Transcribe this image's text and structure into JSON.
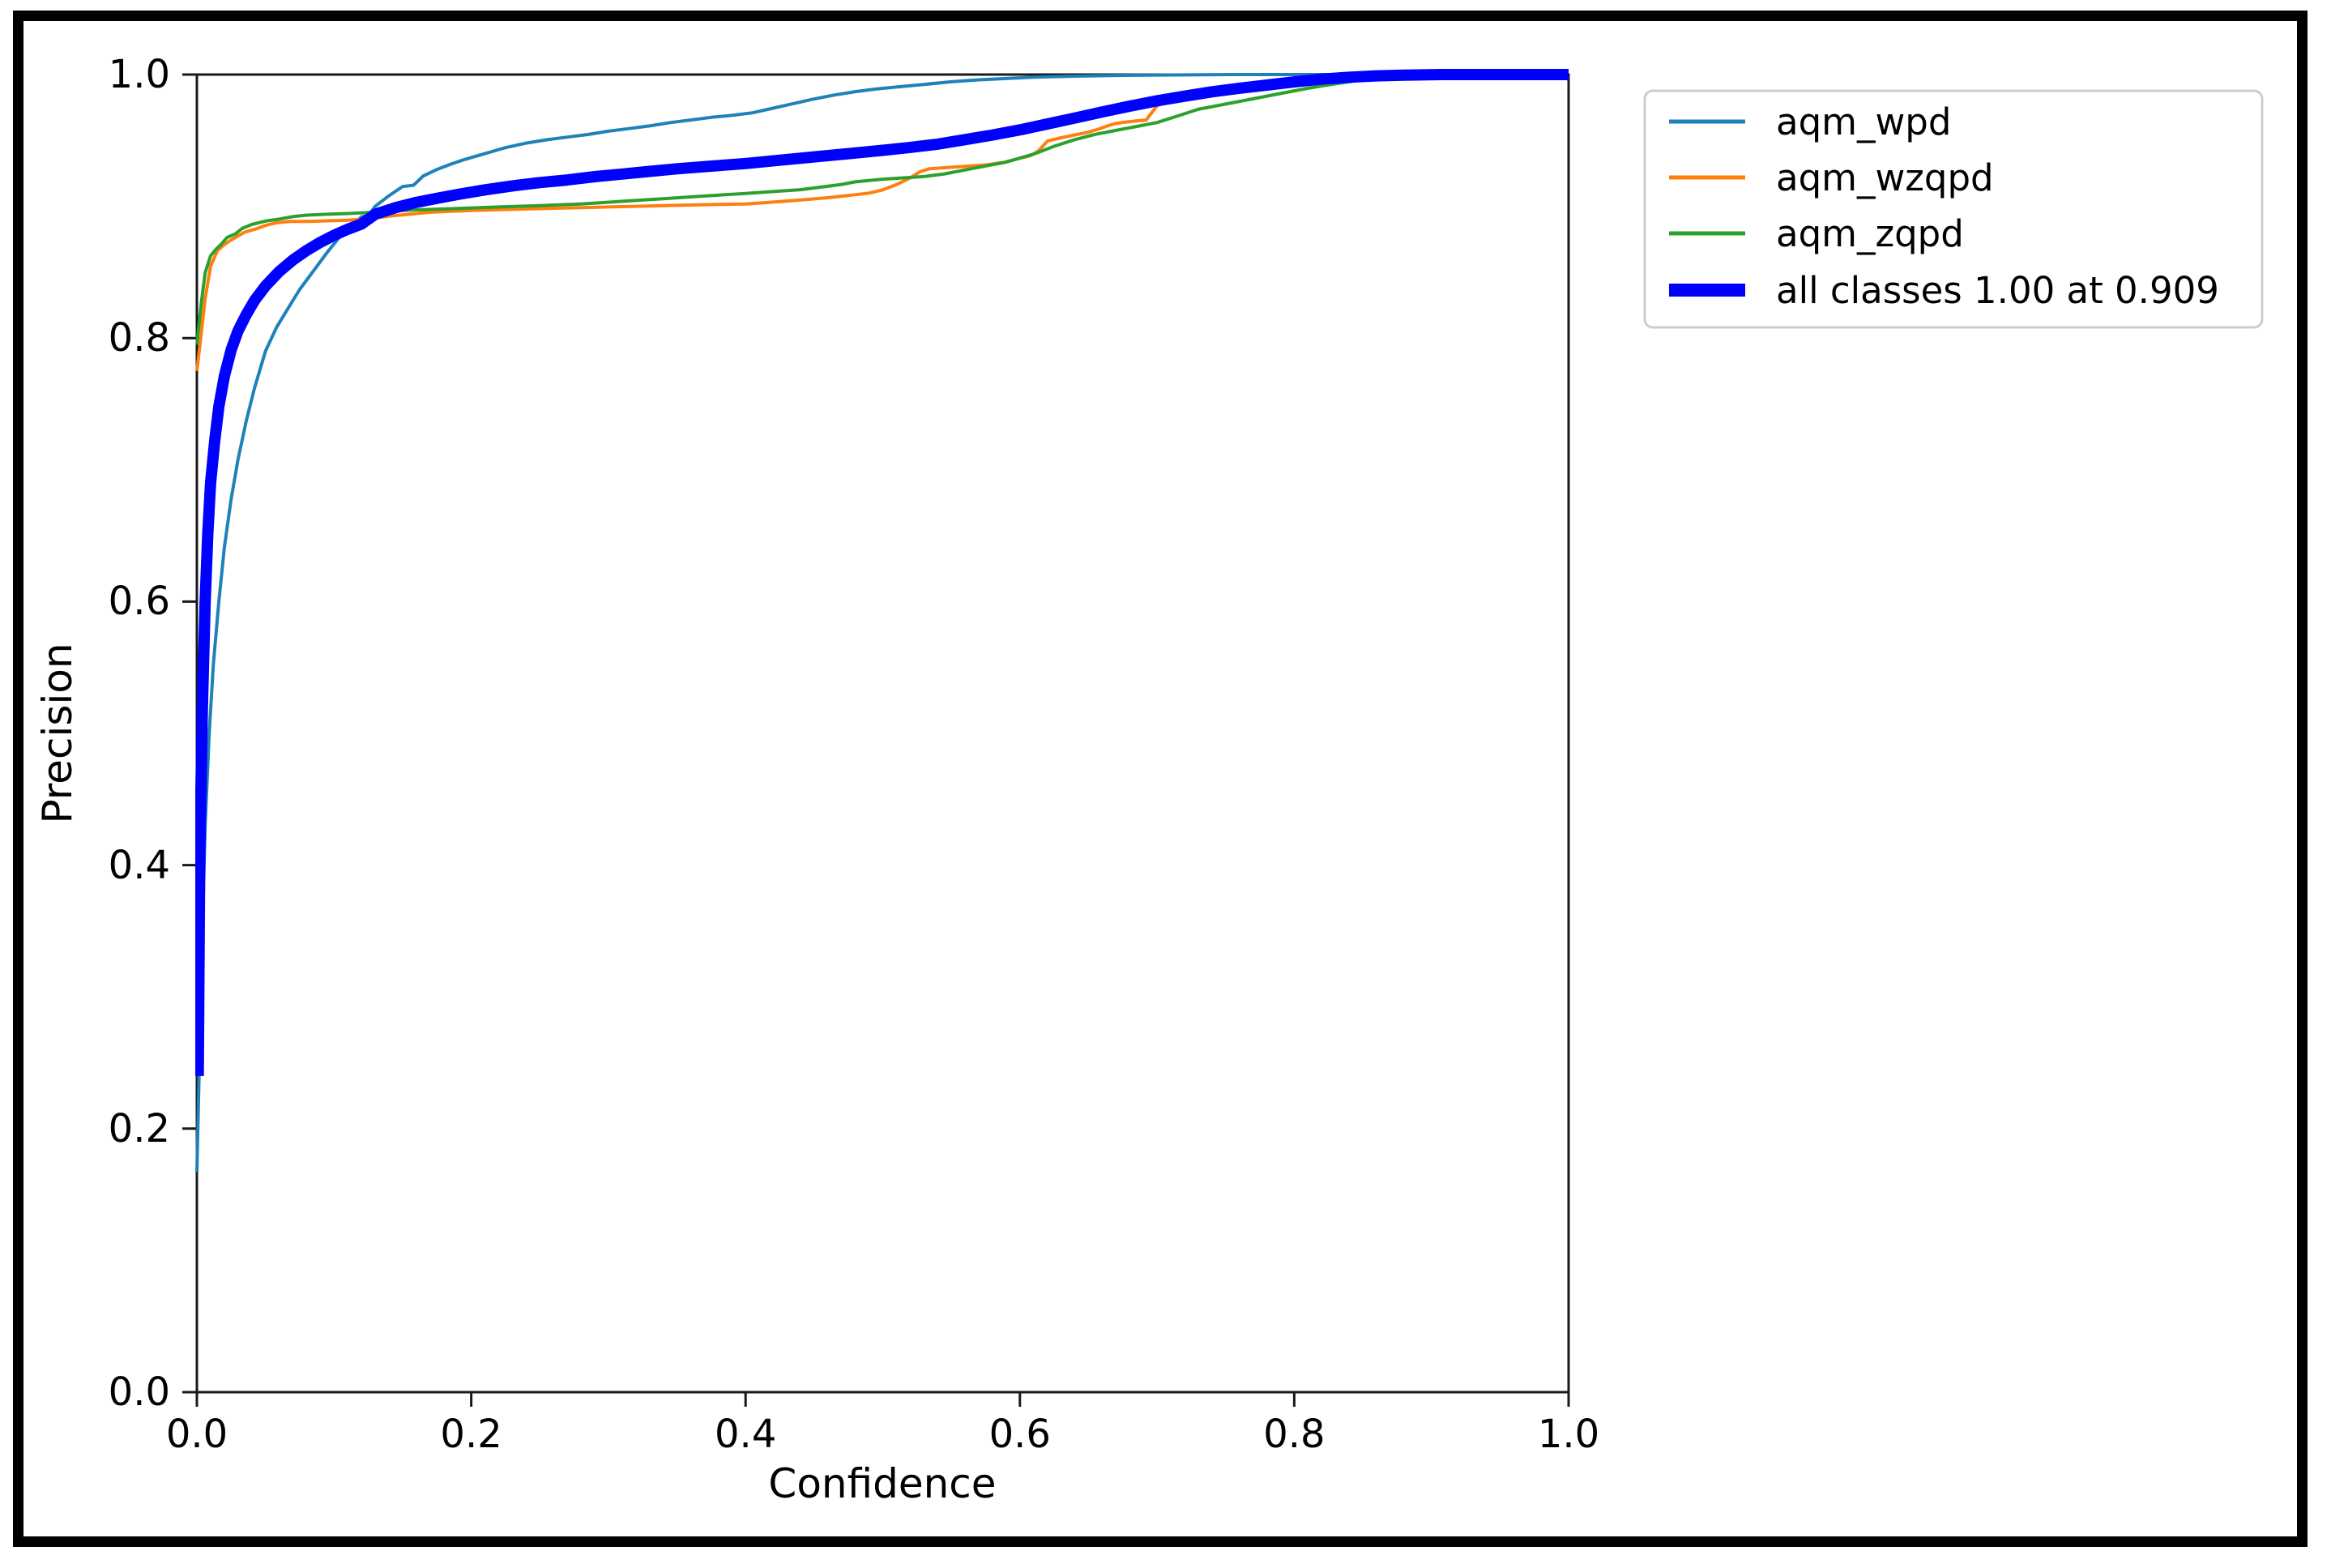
{
  "figure": {
    "background": "#ffffff",
    "outer_border_color": "#000000",
    "spine_color": "#1a1a1a",
    "legend_border_color": "#cccccc"
  },
  "chart_data": {
    "type": "line",
    "title": "",
    "xlabel": "Confidence",
    "ylabel": "Precision",
    "xlim": [
      0.0,
      1.0
    ],
    "ylim": [
      0.0,
      1.0
    ],
    "x_ticks": [
      "0.0",
      "0.2",
      "0.4",
      "0.6",
      "0.8",
      "1.0"
    ],
    "y_ticks": [
      "0.0",
      "0.2",
      "0.4",
      "0.6",
      "0.8",
      "1.0"
    ],
    "grid": false,
    "legend_position": "outside upper right",
    "series": [
      {
        "name": "aqm_wpd",
        "color": "#1e82b9",
        "line_width": 4,
        "points": [
          [
            0,
            0.167
          ],
          [
            0.002,
            0.26
          ],
          [
            0.004,
            0.35
          ],
          [
            0.006,
            0.43
          ],
          [
            0.009,
            0.5
          ],
          [
            0.012,
            0.552
          ],
          [
            0.016,
            0.6
          ],
          [
            0.02,
            0.641
          ],
          [
            0.025,
            0.678
          ],
          [
            0.03,
            0.708
          ],
          [
            0.036,
            0.737
          ],
          [
            0.042,
            0.762
          ],
          [
            0.05,
            0.79
          ],
          [
            0.058,
            0.808
          ],
          [
            0.065,
            0.82
          ],
          [
            0.075,
            0.837
          ],
          [
            0.085,
            0.851
          ],
          [
            0.095,
            0.865
          ],
          [
            0.105,
            0.878
          ],
          [
            0.112,
            0.885
          ],
          [
            0.12,
            0.892
          ],
          [
            0.125,
            0.893
          ],
          [
            0.13,
            0.9
          ],
          [
            0.14,
            0.908
          ],
          [
            0.15,
            0.915
          ],
          [
            0.158,
            0.916
          ],
          [
            0.165,
            0.923
          ],
          [
            0.175,
            0.928
          ],
          [
            0.185,
            0.932
          ],
          [
            0.195,
            0.9355
          ],
          [
            0.21,
            0.94
          ],
          [
            0.225,
            0.9445
          ],
          [
            0.24,
            0.948
          ],
          [
            0.255,
            0.9505
          ],
          [
            0.27,
            0.9525
          ],
          [
            0.285,
            0.9545
          ],
          [
            0.3,
            0.957
          ],
          [
            0.315,
            0.959
          ],
          [
            0.33,
            0.961
          ],
          [
            0.345,
            0.9635
          ],
          [
            0.36,
            0.9655
          ],
          [
            0.375,
            0.9675
          ],
          [
            0.39,
            0.969
          ],
          [
            0.405,
            0.971
          ],
          [
            0.42,
            0.9745
          ],
          [
            0.435,
            0.978
          ],
          [
            0.45,
            0.9815
          ],
          [
            0.465,
            0.9845
          ],
          [
            0.48,
            0.987
          ],
          [
            0.495,
            0.989
          ],
          [
            0.51,
            0.9905
          ],
          [
            0.53,
            0.9925
          ],
          [
            0.55,
            0.9945
          ],
          [
            0.57,
            0.996
          ],
          [
            0.59,
            0.997
          ],
          [
            0.61,
            0.998
          ],
          [
            0.64,
            0.9988
          ],
          [
            0.67,
            0.9993
          ],
          [
            0.71,
            0.9997
          ],
          [
            0.76,
            1.0
          ],
          [
            1.0,
            1.0
          ]
        ]
      },
      {
        "name": "aqm_wzqpd",
        "color": "#ff7f0e",
        "line_width": 4,
        "points": [
          [
            0,
            0.775
          ],
          [
            0.003,
            0.802
          ],
          [
            0.006,
            0.83
          ],
          [
            0.01,
            0.8545
          ],
          [
            0.015,
            0.8665
          ],
          [
            0.02,
            0.871
          ],
          [
            0.025,
            0.8745
          ],
          [
            0.03,
            0.8775
          ],
          [
            0.035,
            0.8805
          ],
          [
            0.042,
            0.8825
          ],
          [
            0.05,
            0.8855
          ],
          [
            0.058,
            0.8875
          ],
          [
            0.068,
            0.8885
          ],
          [
            0.08,
            0.8885
          ],
          [
            0.095,
            0.889
          ],
          [
            0.11,
            0.8895
          ],
          [
            0.125,
            0.8905
          ],
          [
            0.14,
            0.8925
          ],
          [
            0.155,
            0.894
          ],
          [
            0.17,
            0.8955
          ],
          [
            0.185,
            0.8962
          ],
          [
            0.2,
            0.8968
          ],
          [
            0.22,
            0.8974
          ],
          [
            0.24,
            0.898
          ],
          [
            0.26,
            0.8985
          ],
          [
            0.28,
            0.899
          ],
          [
            0.3,
            0.8995
          ],
          [
            0.32,
            0.9
          ],
          [
            0.34,
            0.9005
          ],
          [
            0.36,
            0.901
          ],
          [
            0.38,
            0.9014
          ],
          [
            0.4,
            0.9018
          ],
          [
            0.415,
            0.9028
          ],
          [
            0.43,
            0.904
          ],
          [
            0.445,
            0.9052
          ],
          [
            0.46,
            0.9065
          ],
          [
            0.475,
            0.9082
          ],
          [
            0.49,
            0.91
          ],
          [
            0.5,
            0.9125
          ],
          [
            0.51,
            0.9165
          ],
          [
            0.52,
            0.9215
          ],
          [
            0.527,
            0.9262
          ],
          [
            0.534,
            0.9285
          ],
          [
            0.548,
            0.9295
          ],
          [
            0.562,
            0.9305
          ],
          [
            0.576,
            0.9315
          ],
          [
            0.588,
            0.9333
          ],
          [
            0.6,
            0.9365
          ],
          [
            0.608,
            0.9385
          ],
          [
            0.614,
            0.9425
          ],
          [
            0.62,
            0.9495
          ],
          [
            0.63,
            0.952
          ],
          [
            0.64,
            0.9542
          ],
          [
            0.65,
            0.9563
          ],
          [
            0.657,
            0.9585
          ],
          [
            0.663,
            0.9607
          ],
          [
            0.669,
            0.9627
          ],
          [
            0.676,
            0.9638
          ],
          [
            0.684,
            0.9647
          ],
          [
            0.692,
            0.9655
          ],
          [
            0.7,
            0.9763
          ],
          [
            0.71,
            0.9803
          ],
          [
            0.72,
            0.9824
          ],
          [
            0.735,
            0.9853
          ],
          [
            0.75,
            0.9883
          ],
          [
            0.765,
            0.9904
          ],
          [
            0.78,
            0.9924
          ],
          [
            0.8,
            0.9944
          ],
          [
            0.82,
            0.9964
          ],
          [
            0.84,
            0.998
          ],
          [
            0.86,
            0.9994
          ],
          [
            0.88,
            1.0
          ],
          [
            1.0,
            1.0
          ]
        ]
      },
      {
        "name": "aqm_zqpd",
        "color": "#2ca02c",
        "line_width": 4,
        "points": [
          [
            0,
            0.795
          ],
          [
            0.003,
            0.825
          ],
          [
            0.006,
            0.8495
          ],
          [
            0.01,
            0.8625
          ],
          [
            0.014,
            0.8675
          ],
          [
            0.018,
            0.8715
          ],
          [
            0.022,
            0.8763
          ],
          [
            0.028,
            0.879
          ],
          [
            0.033,
            0.8832
          ],
          [
            0.04,
            0.8862
          ],
          [
            0.05,
            0.8888
          ],
          [
            0.06,
            0.8903
          ],
          [
            0.07,
            0.8922
          ],
          [
            0.08,
            0.8933
          ],
          [
            0.095,
            0.894
          ],
          [
            0.11,
            0.8945
          ],
          [
            0.125,
            0.8953
          ],
          [
            0.14,
            0.8963
          ],
          [
            0.16,
            0.8973
          ],
          [
            0.18,
            0.898
          ],
          [
            0.2,
            0.8988
          ],
          [
            0.22,
            0.8995
          ],
          [
            0.25,
            0.9005
          ],
          [
            0.28,
            0.9018
          ],
          [
            0.31,
            0.9038
          ],
          [
            0.34,
            0.9058
          ],
          [
            0.37,
            0.9078
          ],
          [
            0.4,
            0.9098
          ],
          [
            0.42,
            0.9112
          ],
          [
            0.44,
            0.9126
          ],
          [
            0.455,
            0.9146
          ],
          [
            0.47,
            0.9166
          ],
          [
            0.48,
            0.9186
          ],
          [
            0.49,
            0.9196
          ],
          [
            0.5,
            0.9206
          ],
          [
            0.515,
            0.9216
          ],
          [
            0.53,
            0.9226
          ],
          [
            0.545,
            0.9246
          ],
          [
            0.56,
            0.9276
          ],
          [
            0.575,
            0.9306
          ],
          [
            0.59,
            0.9336
          ],
          [
            0.6,
            0.9366
          ],
          [
            0.61,
            0.9396
          ],
          [
            0.625,
            0.9456
          ],
          [
            0.64,
            0.9506
          ],
          [
            0.655,
            0.9546
          ],
          [
            0.67,
            0.9576
          ],
          [
            0.685,
            0.9606
          ],
          [
            0.7,
            0.9636
          ],
          [
            0.715,
            0.9686
          ],
          [
            0.73,
            0.9736
          ],
          [
            0.75,
            0.9776
          ],
          [
            0.77,
            0.9816
          ],
          [
            0.79,
            0.9856
          ],
          [
            0.81,
            0.9896
          ],
          [
            0.83,
            0.993
          ],
          [
            0.85,
            0.996
          ],
          [
            0.87,
            0.998
          ],
          [
            0.89,
            0.9995
          ],
          [
            0.91,
            1.0
          ],
          [
            1.0,
            1.0
          ]
        ]
      },
      {
        "name": "all classes 1.00 at 0.909",
        "color": "#0000ff",
        "line_width": 14,
        "points": [
          [
            0.001,
            0.24
          ],
          [
            0.002,
            0.4
          ],
          [
            0.004,
            0.52
          ],
          [
            0.006,
            0.6
          ],
          [
            0.008,
            0.652
          ],
          [
            0.01,
            0.69
          ],
          [
            0.013,
            0.722
          ],
          [
            0.016,
            0.748
          ],
          [
            0.02,
            0.771
          ],
          [
            0.025,
            0.791
          ],
          [
            0.03,
            0.8055
          ],
          [
            0.036,
            0.8178
          ],
          [
            0.042,
            0.8285
          ],
          [
            0.05,
            0.8395
          ],
          [
            0.06,
            0.8505
          ],
          [
            0.07,
            0.8592
          ],
          [
            0.08,
            0.8665
          ],
          [
            0.09,
            0.8727
          ],
          [
            0.1,
            0.878
          ],
          [
            0.11,
            0.8826
          ],
          [
            0.12,
            0.8866
          ],
          [
            0.13,
            0.894
          ],
          [
            0.145,
            0.899
          ],
          [
            0.16,
            0.903
          ],
          [
            0.175,
            0.906
          ],
          [
            0.19,
            0.909
          ],
          [
            0.21,
            0.9125
          ],
          [
            0.23,
            0.9155
          ],
          [
            0.25,
            0.918
          ],
          [
            0.27,
            0.92
          ],
          [
            0.29,
            0.9225
          ],
          [
            0.31,
            0.9245
          ],
          [
            0.33,
            0.9265
          ],
          [
            0.35,
            0.9285
          ],
          [
            0.375,
            0.9305
          ],
          [
            0.4,
            0.9325
          ],
          [
            0.425,
            0.935
          ],
          [
            0.45,
            0.9375
          ],
          [
            0.475,
            0.94
          ],
          [
            0.5,
            0.9425
          ],
          [
            0.52,
            0.9447
          ],
          [
            0.54,
            0.9472
          ],
          [
            0.56,
            0.9506
          ],
          [
            0.58,
            0.9541
          ],
          [
            0.6,
            0.958
          ],
          [
            0.62,
            0.9625
          ],
          [
            0.64,
            0.967
          ],
          [
            0.66,
            0.9716
          ],
          [
            0.68,
            0.976
          ],
          [
            0.7,
            0.9801
          ],
          [
            0.72,
            0.9836
          ],
          [
            0.74,
            0.9869
          ],
          [
            0.76,
            0.9896
          ],
          [
            0.78,
            0.992
          ],
          [
            0.8,
            0.9944
          ],
          [
            0.82,
            0.9965
          ],
          [
            0.84,
            0.998
          ],
          [
            0.86,
            0.999
          ],
          [
            0.88,
            0.9996
          ],
          [
            0.909,
            1.0
          ],
          [
            1.0,
            1.0
          ]
        ]
      }
    ]
  }
}
